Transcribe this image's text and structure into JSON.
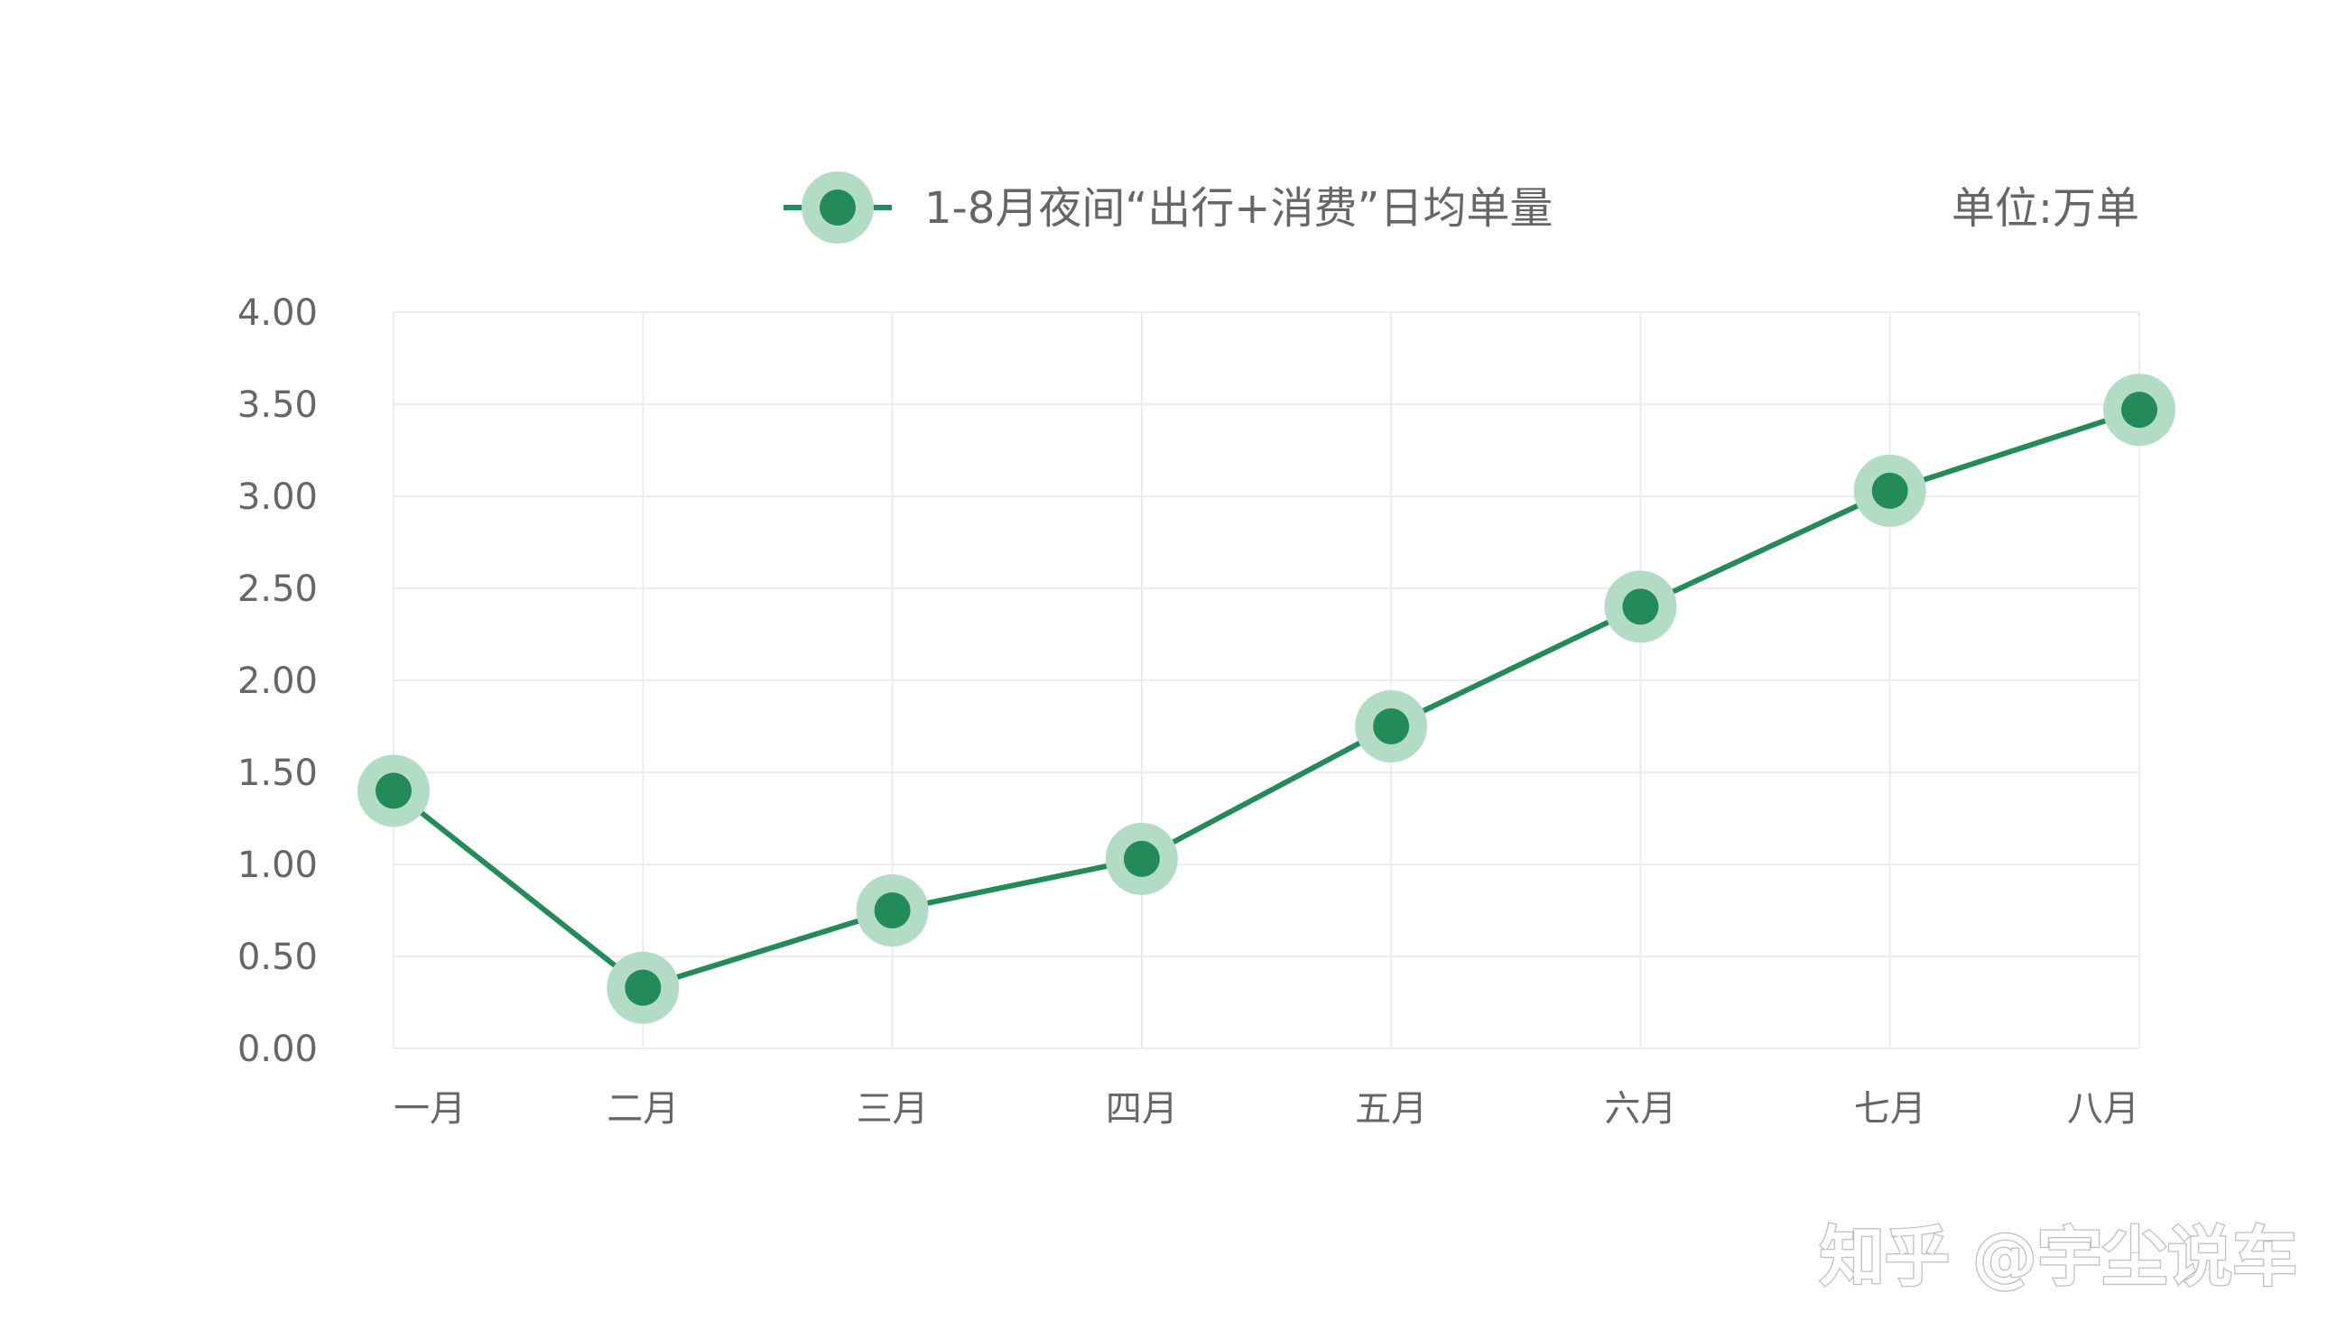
{
  "chart_data": {
    "type": "line",
    "categories": [
      "一月",
      "二月",
      "三月",
      "四月",
      "五月",
      "六月",
      "七月",
      "八月"
    ],
    "series": [
      {
        "name": "1-8月夜间“出行+消费”日均单量",
        "values": [
          1.4,
          0.33,
          0.75,
          1.03,
          1.75,
          2.4,
          3.03,
          3.47
        ]
      }
    ],
    "yticks": [
      "0.00",
      "0.50",
      "1.00",
      "1.50",
      "2.00",
      "2.50",
      "3.00",
      "3.50",
      "4.00"
    ],
    "ylim": [
      0,
      4
    ],
    "unit_label": "单位:万单",
    "grid": true,
    "legend_position": "top-center"
  },
  "colors": {
    "line": "#238b5a",
    "marker": "#238b5a",
    "halo": "#b3dcc7",
    "grid": "#ececec",
    "text": "#666666"
  },
  "watermark": "知乎 @宇尘说车"
}
